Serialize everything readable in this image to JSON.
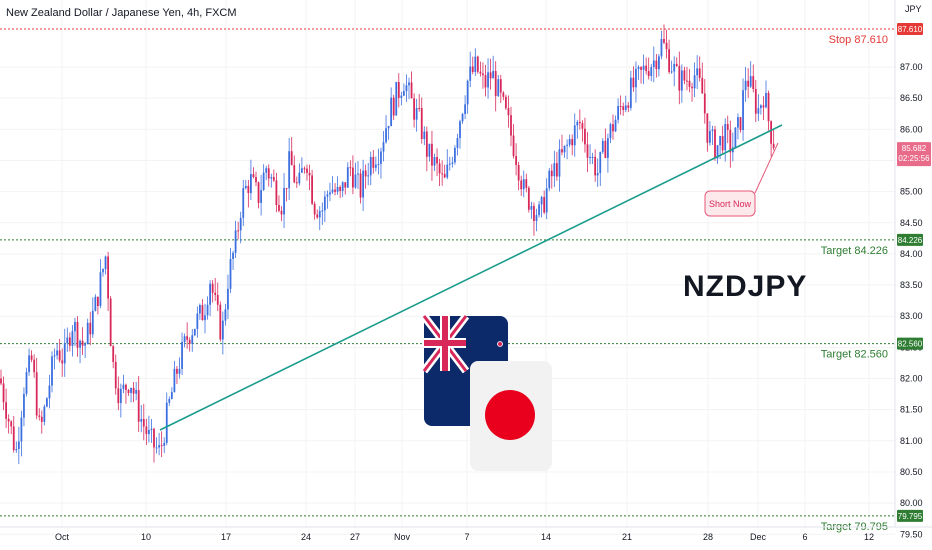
{
  "header": {
    "title": "New Zealand Dollar / Japanese Yen, 4h, FXCM"
  },
  "overlay": {
    "symbol_label": "NZDJPY",
    "annotation": "Short Now"
  },
  "colors": {
    "up": "#3b6fe0",
    "down": "#d8285a",
    "trend": "#1a9c8c",
    "target": "#2e7d32",
    "stop": "#e53935",
    "price": "#e86b8a"
  },
  "chart_data": {
    "type": "candlestick",
    "title": "New Zealand Dollar / Japanese Yen, 4h, FXCM",
    "y_axis_unit": "JPY",
    "ylim": [
      79.3,
      88.0
    ],
    "y_ticks": [
      79.5,
      80.0,
      80.5,
      81.0,
      81.5,
      82.0,
      82.5,
      83.0,
      83.5,
      84.0,
      84.5,
      85.0,
      85.5,
      86.0,
      86.5,
      87.0
    ],
    "x_ticks": [
      "Oct",
      "10",
      "17",
      "24",
      "27",
      "Nov",
      "7",
      "14",
      "21",
      "28",
      "Dec",
      "6",
      "12"
    ],
    "current_price": {
      "value": "85.682",
      "countdown": "02:25:56"
    },
    "levels": [
      {
        "label": "Stop 87.610",
        "value": 87.61,
        "badge": "87.610",
        "kind": "stop"
      },
      {
        "label": "Target 84.226",
        "value": 84.226,
        "badge": "84.226",
        "kind": "target"
      },
      {
        "label": "Target 82.560",
        "value": 82.56,
        "badge": "82.560",
        "kind": "target"
      },
      {
        "label": "Target 79.795",
        "value": 79.795,
        "badge": "79.795",
        "kind": "target"
      }
    ],
    "trendline": {
      "from": {
        "date": "Oct 11",
        "price": 80.7
      },
      "to": {
        "date": "Dec 3",
        "price": 85.95
      }
    },
    "price_path_anchors": [
      [
        0,
        82.0
      ],
      [
        8,
        81.4
      ],
      [
        16,
        80.8
      ],
      [
        24,
        81.9
      ],
      [
        32,
        82.3
      ],
      [
        40,
        81.1
      ],
      [
        48,
        81.8
      ],
      [
        56,
        82.5
      ],
      [
        64,
        82.3
      ],
      [
        72,
        82.9
      ],
      [
        84,
        82.5
      ],
      [
        96,
        83.2
      ],
      [
        106,
        84.0
      ],
      [
        112,
        82.3
      ],
      [
        120,
        81.7
      ],
      [
        130,
        82.0
      ],
      [
        140,
        81.4
      ],
      [
        150,
        81.0
      ],
      [
        160,
        80.8
      ],
      [
        168,
        81.5
      ],
      [
        178,
        82.2
      ],
      [
        188,
        82.7
      ],
      [
        196,
        82.9
      ],
      [
        204,
        83.1
      ],
      [
        210,
        83.6
      ],
      [
        216,
        83.1
      ],
      [
        222,
        82.7
      ],
      [
        228,
        83.6
      ],
      [
        236,
        84.2
      ],
      [
        242,
        84.9
      ],
      [
        250,
        85.2
      ],
      [
        258,
        84.9
      ],
      [
        266,
        85.4
      ],
      [
        274,
        85.1
      ],
      [
        282,
        84.8
      ],
      [
        290,
        85.5
      ],
      [
        298,
        85.0
      ],
      [
        306,
        85.6
      ],
      [
        314,
        84.8
      ],
      [
        322,
        84.7
      ],
      [
        330,
        85.1
      ],
      [
        340,
        84.9
      ],
      [
        350,
        85.4
      ],
      [
        360,
        85.0
      ],
      [
        370,
        85.5
      ],
      [
        380,
        85.7
      ],
      [
        390,
        86.3
      ],
      [
        398,
        86.6
      ],
      [
        404,
        86.8
      ],
      [
        412,
        86.4
      ],
      [
        420,
        86.1
      ],
      [
        428,
        85.6
      ],
      [
        436,
        85.4
      ],
      [
        444,
        85.1
      ],
      [
        452,
        85.6
      ],
      [
        460,
        86.2
      ],
      [
        468,
        86.8
      ],
      [
        476,
        87.0
      ],
      [
        484,
        86.7
      ],
      [
        492,
        86.9
      ],
      [
        500,
        86.5
      ],
      [
        508,
        86.1
      ],
      [
        516,
        85.6
      ],
      [
        524,
        85.0
      ],
      [
        532,
        84.8
      ],
      [
        540,
        84.6
      ],
      [
        548,
        85.1
      ],
      [
        556,
        85.4
      ],
      [
        564,
        85.6
      ],
      [
        572,
        85.9
      ],
      [
        580,
        86.1
      ],
      [
        590,
        85.6
      ],
      [
        598,
        85.3
      ],
      [
        606,
        85.8
      ],
      [
        614,
        86.1
      ],
      [
        622,
        86.4
      ],
      [
        630,
        86.6
      ],
      [
        638,
        86.8
      ],
      [
        646,
        87.0
      ],
      [
        654,
        87.1
      ],
      [
        662,
        87.4
      ],
      [
        670,
        87.1
      ],
      [
        678,
        86.8
      ],
      [
        686,
        86.8
      ],
      [
        694,
        86.9
      ],
      [
        702,
        86.6
      ],
      [
        708,
        85.9
      ],
      [
        716,
        85.7
      ],
      [
        724,
        85.9
      ],
      [
        732,
        85.7
      ],
      [
        740,
        86.1
      ],
      [
        746,
        86.9
      ],
      [
        752,
        86.6
      ],
      [
        758,
        86.3
      ],
      [
        764,
        86.6
      ],
      [
        770,
        86.0
      ],
      [
        776,
        85.7
      ]
    ]
  }
}
